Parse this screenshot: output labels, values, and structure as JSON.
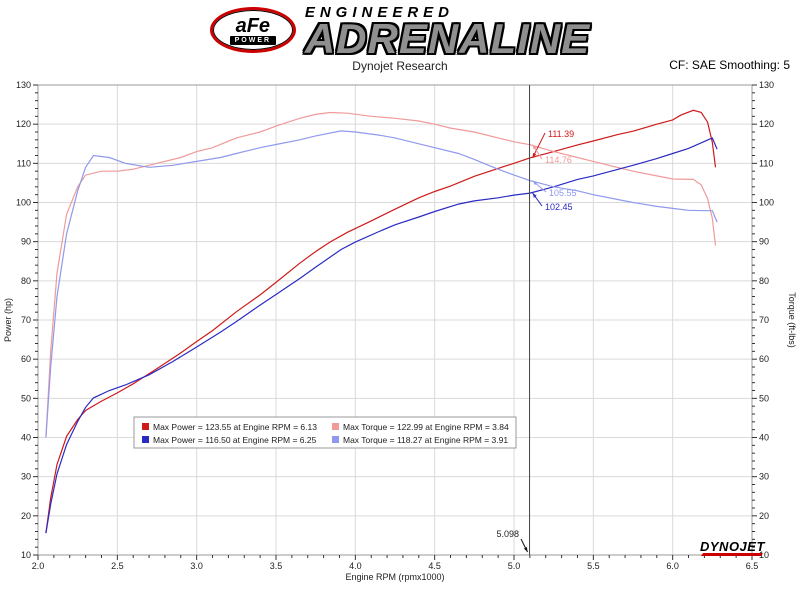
{
  "header": {
    "afe_logo_text": "aFe",
    "afe_logo_sub": "POWER",
    "brand_line1": "ENGINEERED",
    "brand_line2": "ADRENALINE",
    "subtitle": "Dynojet Research",
    "cf_label": "CF: SAE Smoothing: 5"
  },
  "footer": {
    "dynojet_logo": "DYNOJET"
  },
  "chart_data": {
    "type": "line",
    "xlabel": "Engine RPM (rpmx1000)",
    "ylabel_left": "Power (hp)",
    "ylabel_right": "Torque (ft-lbs)",
    "xlim": [
      2.0,
      6.5
    ],
    "ylim": [
      10,
      130
    ],
    "x_ticks": [
      2.0,
      2.5,
      3.0,
      3.5,
      4.0,
      4.5,
      5.0,
      5.5,
      6.0,
      6.5
    ],
    "y_ticks": [
      10,
      20,
      30,
      40,
      50,
      60,
      70,
      80,
      90,
      100,
      110,
      120,
      130
    ],
    "grid": true,
    "legend_position": "bottom-center",
    "cursor": {
      "x": 5.098,
      "label": "5.098",
      "readouts": [
        {
          "value": "111.39",
          "series": 0
        },
        {
          "value": "114.76",
          "series": 1
        },
        {
          "value": "105.55",
          "series": 3
        },
        {
          "value": "102.45",
          "series": 2
        }
      ]
    },
    "series": [
      {
        "key": "afe-power",
        "legend_label": "Max Power = 123.55 at Engine RPM = 6.13",
        "color": "#cf1a1a",
        "max_value": 123.55,
        "max_at_rpm": 6.13,
        "points": [
          [
            2.05,
            15.6
          ],
          [
            2.08,
            24.6
          ],
          [
            2.12,
            33.1
          ],
          [
            2.18,
            40.3
          ],
          [
            2.25,
            44.6
          ],
          [
            2.3,
            46.9
          ],
          [
            2.4,
            49.3
          ],
          [
            2.5,
            51.4
          ],
          [
            2.6,
            53.7
          ],
          [
            2.75,
            57.6
          ],
          [
            2.9,
            61.6
          ],
          [
            3.0,
            64.5
          ],
          [
            3.1,
            67.3
          ],
          [
            3.25,
            72.1
          ],
          [
            3.4,
            76.4
          ],
          [
            3.5,
            79.6
          ],
          [
            3.65,
            84.5
          ],
          [
            3.75,
            87.5
          ],
          [
            3.84,
            89.9
          ],
          [
            3.95,
            92.4
          ],
          [
            4.1,
            95.3
          ],
          [
            4.25,
            98.3
          ],
          [
            4.4,
            101.2
          ],
          [
            4.5,
            102.8
          ],
          [
            4.6,
            104.2
          ],
          [
            4.75,
            106.7
          ],
          [
            4.9,
            108.7
          ],
          [
            5.0,
            110.0
          ],
          [
            5.1,
            111.4
          ],
          [
            5.25,
            113.0
          ],
          [
            5.4,
            114.7
          ],
          [
            5.5,
            115.7
          ],
          [
            5.65,
            117.3
          ],
          [
            5.75,
            118.2
          ],
          [
            5.9,
            120.0
          ],
          [
            6.0,
            121.1
          ],
          [
            6.05,
            122.3
          ],
          [
            6.13,
            123.55
          ],
          [
            6.18,
            123.0
          ],
          [
            6.22,
            120.5
          ],
          [
            6.25,
            115.4
          ],
          [
            6.27,
            109.0
          ]
        ]
      },
      {
        "key": "afe-torque",
        "legend_label": "Max Torque = 122.99 at Engine RPM = 3.84",
        "color": "#f09a9a",
        "max_value": 122.99,
        "max_at_rpm": 3.84,
        "points": [
          [
            2.05,
            40
          ],
          [
            2.08,
            62
          ],
          [
            2.12,
            82
          ],
          [
            2.18,
            97
          ],
          [
            2.25,
            104
          ],
          [
            2.3,
            107
          ],
          [
            2.4,
            108
          ],
          [
            2.5,
            108
          ],
          [
            2.6,
            108.5
          ],
          [
            2.75,
            110
          ],
          [
            2.9,
            111.5
          ],
          [
            3.0,
            113
          ],
          [
            3.1,
            114
          ],
          [
            3.25,
            116.5
          ],
          [
            3.4,
            118
          ],
          [
            3.5,
            119.5
          ],
          [
            3.65,
            121.5
          ],
          [
            3.75,
            122.5
          ],
          [
            3.84,
            122.99
          ],
          [
            3.95,
            122.8
          ],
          [
            4.1,
            122
          ],
          [
            4.25,
            121.5
          ],
          [
            4.4,
            120.8
          ],
          [
            4.5,
            120
          ],
          [
            4.6,
            119
          ],
          [
            4.75,
            118
          ],
          [
            4.9,
            116.5
          ],
          [
            5.0,
            115.5
          ],
          [
            5.1,
            114.76
          ],
          [
            5.25,
            113
          ],
          [
            5.4,
            111.5
          ],
          [
            5.5,
            110.5
          ],
          [
            5.65,
            109
          ],
          [
            5.75,
            108
          ],
          [
            5.9,
            106.8
          ],
          [
            6.0,
            106
          ],
          [
            6.13,
            105.9
          ],
          [
            6.18,
            104.5
          ],
          [
            6.22,
            101
          ],
          [
            6.25,
            96
          ],
          [
            6.27,
            89
          ]
        ]
      },
      {
        "key": "stock-power",
        "legend_label": "Max Power = 116.50 at Engine RPM = 6.25",
        "color": "#2b2bc4",
        "max_value": 116.5,
        "max_at_rpm": 6.25,
        "points": [
          [
            2.05,
            15.6
          ],
          [
            2.08,
            23.0
          ],
          [
            2.12,
            30.7
          ],
          [
            2.18,
            38.2
          ],
          [
            2.25,
            44.1
          ],
          [
            2.3,
            47.7
          ],
          [
            2.35,
            50.1
          ],
          [
            2.45,
            52.0
          ],
          [
            2.55,
            53.4
          ],
          [
            2.7,
            56.0
          ],
          [
            2.85,
            59.4
          ],
          [
            3.0,
            63.1
          ],
          [
            3.15,
            66.9
          ],
          [
            3.25,
            69.6
          ],
          [
            3.4,
            73.8
          ],
          [
            3.5,
            76.5
          ],
          [
            3.65,
            80.6
          ],
          [
            3.75,
            83.5
          ],
          [
            3.91,
            88.0
          ],
          [
            4.0,
            89.9
          ],
          [
            4.15,
            92.6
          ],
          [
            4.25,
            94.3
          ],
          [
            4.4,
            96.3
          ],
          [
            4.5,
            97.7
          ],
          [
            4.65,
            99.6
          ],
          [
            4.75,
            100.4
          ],
          [
            4.9,
            101.2
          ],
          [
            5.0,
            101.9
          ],
          [
            5.1,
            102.4
          ],
          [
            5.25,
            104.0
          ],
          [
            5.4,
            105.9
          ],
          [
            5.5,
            106.8
          ],
          [
            5.65,
            108.4
          ],
          [
            5.75,
            109.5
          ],
          [
            5.9,
            111.2
          ],
          [
            6.0,
            112.5
          ],
          [
            6.1,
            113.8
          ],
          [
            6.2,
            115.6
          ],
          [
            6.25,
            116.5
          ],
          [
            6.28,
            113.6
          ]
        ]
      },
      {
        "key": "stock-torque",
        "legend_label": "Max Torque = 118.27 at Engine RPM = 3.91",
        "color": "#9099ec",
        "max_value": 118.27,
        "max_at_rpm": 3.91,
        "points": [
          [
            2.05,
            40
          ],
          [
            2.08,
            58
          ],
          [
            2.12,
            76
          ],
          [
            2.18,
            92
          ],
          [
            2.25,
            103
          ],
          [
            2.3,
            109
          ],
          [
            2.35,
            112
          ],
          [
            2.45,
            111.5
          ],
          [
            2.55,
            110
          ],
          [
            2.7,
            109
          ],
          [
            2.85,
            109.5
          ],
          [
            3.0,
            110.5
          ],
          [
            3.15,
            111.5
          ],
          [
            3.25,
            112.5
          ],
          [
            3.4,
            114
          ],
          [
            3.5,
            114.8
          ],
          [
            3.65,
            116
          ],
          [
            3.75,
            117
          ],
          [
            3.91,
            118.27
          ],
          [
            4.0,
            118
          ],
          [
            4.15,
            117.2
          ],
          [
            4.25,
            116.5
          ],
          [
            4.4,
            115
          ],
          [
            4.5,
            114
          ],
          [
            4.65,
            112.5
          ],
          [
            4.75,
            111
          ],
          [
            4.9,
            108.5
          ],
          [
            5.0,
            107
          ],
          [
            5.1,
            105.6
          ],
          [
            5.25,
            104
          ],
          [
            5.4,
            103
          ],
          [
            5.5,
            102
          ],
          [
            5.65,
            100.8
          ],
          [
            5.75,
            100
          ],
          [
            5.9,
            99
          ],
          [
            6.0,
            98.5
          ],
          [
            6.1,
            98
          ],
          [
            6.2,
            97.9
          ],
          [
            6.25,
            97.9
          ],
          [
            6.28,
            95
          ]
        ]
      }
    ]
  }
}
